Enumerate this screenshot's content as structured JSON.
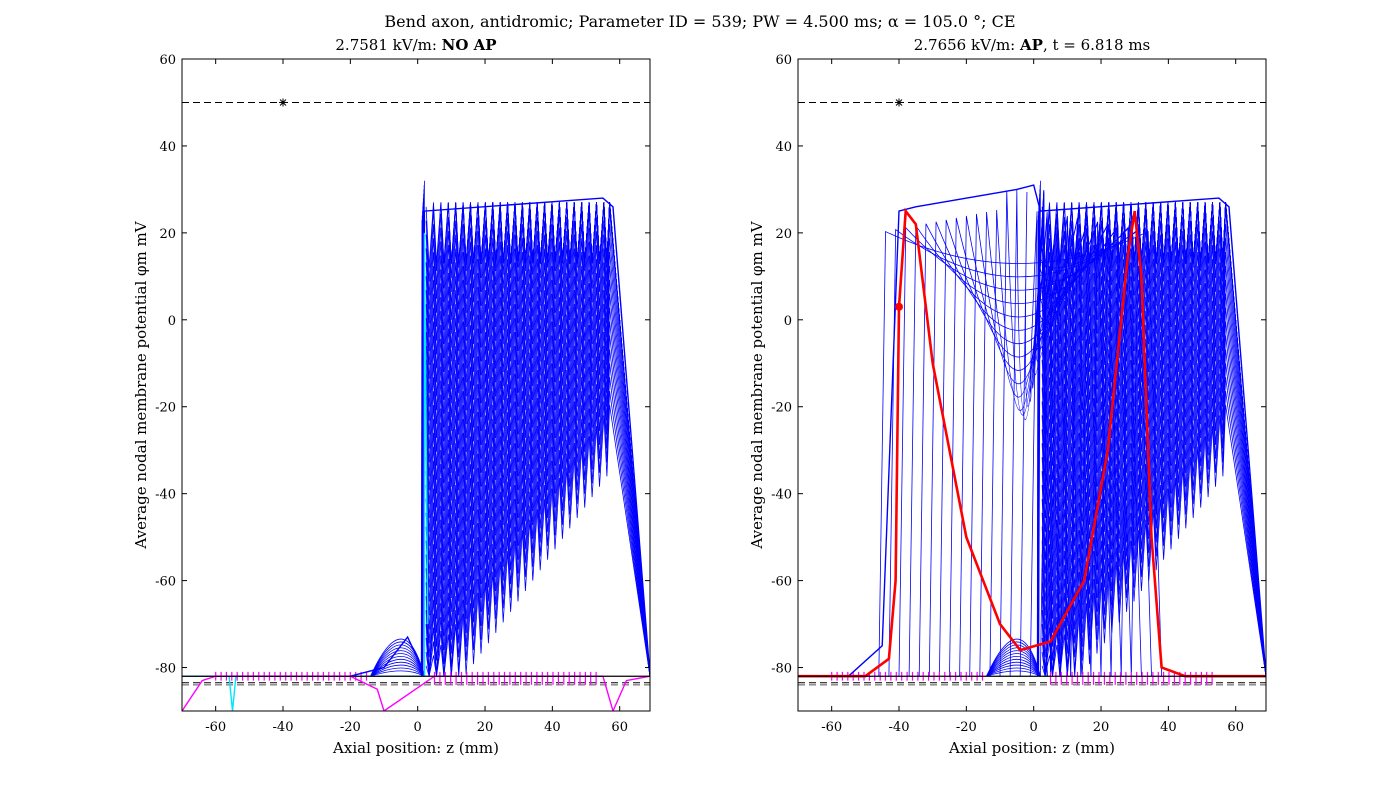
{
  "figure": {
    "suptitle": "Bend axon, antidromic; Parameter ID = 539; PW = 4.500 ms; α = 105.0 °; CE"
  },
  "chart_data": [
    {
      "type": "line",
      "title_prefix": "2.7581 kV/m: ",
      "title_bold": "NO AP",
      "title_suffix": "",
      "xlabel": "Axial position: z (mm)",
      "ylabel": "Average nodal membrane potential φm mV",
      "xlim": [
        -70,
        69
      ],
      "ylim": [
        -90,
        60
      ],
      "xticks": [
        -60,
        -40,
        -20,
        0,
        20,
        40,
        60
      ],
      "yticks": [
        -80,
        -60,
        -40,
        -20,
        0,
        20,
        40,
        60
      ],
      "grid": false,
      "threshold_line": 50,
      "rest_lines": [
        -83.5,
        -84.0
      ],
      "marker": {
        "x": -40,
        "y": 50
      },
      "series": [
        {
          "color": "#0000ff",
          "x": [
            -70,
            -55,
            -20,
            -10,
            -5,
            -3,
            0,
            2,
            2,
            55,
            58,
            69
          ],
          "values": [
            -82,
            -82,
            -82,
            -80,
            -75,
            -73,
            -78,
            -82,
            25,
            28,
            26,
            -82
          ]
        },
        {
          "color": "#00e5ff",
          "x": [
            -70,
            -56,
            -55,
            -54,
            -10,
            1,
            2,
            2,
            3
          ],
          "values": [
            -82,
            -82,
            -90,
            -82,
            -82,
            -82,
            -82,
            20,
            -70
          ]
        },
        {
          "color": "#ff00ff",
          "x": [
            -70,
            -64,
            -60,
            -55,
            -20,
            -12,
            -10,
            5,
            55,
            58,
            62,
            69
          ],
          "values": [
            -90,
            -83,
            -82,
            -82,
            -82,
            -85,
            -90,
            -82,
            -82,
            -90,
            -83,
            -82
          ]
        }
      ]
    },
    {
      "type": "line",
      "title_prefix": "2.7656 kV/m: ",
      "title_bold": "AP",
      "title_suffix": ", t = 6.818 ms",
      "xlabel": "Axial position: z (mm)",
      "ylabel": "Average nodal membrane potential φm mV",
      "xlim": [
        -70,
        69
      ],
      "ylim": [
        -90,
        60
      ],
      "xticks": [
        -60,
        -40,
        -20,
        0,
        20,
        40,
        60
      ],
      "yticks": [
        -80,
        -60,
        -40,
        -20,
        0,
        20,
        40,
        60
      ],
      "grid": false,
      "threshold_line": 50,
      "rest_lines": [
        -83.5,
        -84.0
      ],
      "marker": {
        "x": -40,
        "y": 50
      },
      "ap_point": {
        "x": -40,
        "y": 3
      },
      "series": [
        {
          "color": "#0000ff",
          "x": [
            -70,
            -55,
            -45,
            -40,
            -35,
            -5,
            0,
            2,
            55,
            58,
            69
          ],
          "values": [
            -82,
            -82,
            -75,
            25,
            26,
            30,
            31,
            25,
            28,
            26,
            -82
          ]
        },
        {
          "color": "#ff0000",
          "x": [
            -70,
            -50,
            -43,
            -41,
            -40,
            -38,
            -35,
            -30,
            -20,
            -10,
            -4,
            5,
            15,
            22,
            28,
            30,
            32,
            35,
            38,
            45,
            55,
            69
          ],
          "values": [
            -82,
            -82,
            -78,
            -60,
            3,
            25,
            22,
            -10,
            -50,
            -70,
            -76,
            -74,
            -60,
            -30,
            15,
            25,
            10,
            -50,
            -80,
            -82,
            -82,
            -82
          ]
        }
      ]
    }
  ]
}
